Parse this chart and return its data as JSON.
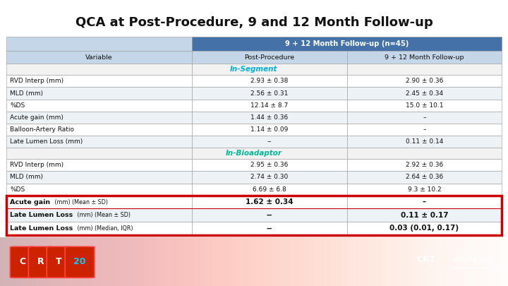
{
  "title": "QCA at Post-Procedure, 9 and 12 Month Follow-up",
  "header_top": "9 + 12 Month Follow-up (n=45)",
  "col_headers": [
    "Variable",
    "Post-Procedure",
    "9 + 12 Month Follow-up"
  ],
  "in_segment_label": "In-Segment",
  "in_bioadaptor_label": "In-Bioadaptor",
  "in_segment_rows": [
    [
      "RVD Interp (mm)",
      "2.93 ± 0.38",
      "2.90 ± 0.36"
    ],
    [
      "MLD (mm)",
      "2.56 ± 0.31",
      "2.45 ± 0.34"
    ],
    [
      "%DS",
      "12.14 ± 8.7",
      "15.0 ± 10.1"
    ],
    [
      "Acute gain (mm)",
      "1.44 ± 0.36",
      "–"
    ],
    [
      "Balloon-Artery Ratio",
      "1.14 ± 0.09",
      "–"
    ],
    [
      "Late Lumen Loss (mm)",
      "--",
      "0.11 ± 0.14"
    ]
  ],
  "in_bioadaptor_rows": [
    [
      "RVD Interp (mm)",
      "2.95 ± 0.36",
      "2.92 ± 0.36"
    ],
    [
      "MLD (mm)",
      "2.74 ± 0.30",
      "2.64 ± 0.36"
    ],
    [
      "%DS",
      "6.69 ± 6.8",
      "9.3 ± 10.2"
    ]
  ],
  "highlighted_rows": [
    [
      "Acute gain",
      " (mm) (Mean ± SD)",
      "1.62 ± 0.34",
      "–"
    ],
    [
      "Late Lumen Loss",
      " (mm) (Mean ± SD)",
      "--",
      "0.11 ± 0.17"
    ],
    [
      "Late Lumen Loss",
      " (mm) (Median, IQR)",
      "--",
      "0.03 (0.01, 0.17)"
    ]
  ],
  "bg_color": "#ffffff",
  "header_bg": "#4472a8",
  "header_text_color": "#ffffff",
  "col_header_bg": "#c5d6e8",
  "in_segment_color": "#00b0d8",
  "in_bioadaptor_color": "#00b894",
  "highlight_border": "#cc0000",
  "row_bg_even": "#ffffff",
  "row_bg_odd": "#edf2f7",
  "section_row_bg": "#f0f0f0",
  "title_color": "#111111",
  "footer_bg": "#5a0020"
}
